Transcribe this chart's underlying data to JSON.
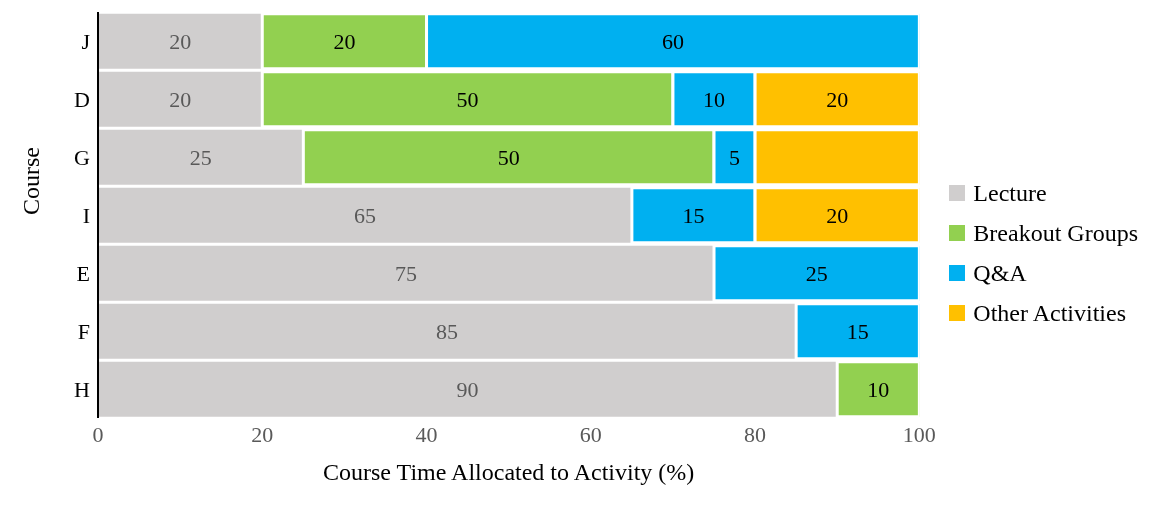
{
  "chart_data": {
    "type": "bar",
    "orientation": "horizontal",
    "stacked": true,
    "xlabel": "Course Time Allocated to Activity (%)",
    "ylabel": "Course",
    "categories": [
      "J",
      "D",
      "G",
      "I",
      "E",
      "F",
      "H"
    ],
    "series": [
      {
        "name": "Lecture",
        "color": "#d0cece",
        "values": [
          20,
          20,
          25,
          65,
          75,
          85,
          90
        ],
        "value_labels": [
          "20",
          "20",
          "25",
          "65",
          "75",
          "85",
          "90"
        ]
      },
      {
        "name": "Breakout Groups",
        "color": "#92d050",
        "values": [
          20,
          50,
          50,
          null,
          null,
          null,
          10
        ],
        "value_labels": [
          "20",
          "50",
          "50",
          null,
          null,
          null,
          "10"
        ]
      },
      {
        "name": "Q&A",
        "color": "#00b0f0",
        "values": [
          60,
          10,
          5,
          15,
          25,
          15,
          null
        ],
        "value_labels": [
          "60",
          "10",
          "5",
          "15",
          "25",
          "15",
          null
        ]
      },
      {
        "name": "Other Activities",
        "color": "#ffc000",
        "values": [
          null,
          20,
          20,
          20,
          null,
          null,
          null
        ],
        "value_labels": [
          null,
          "20",
          null,
          "20",
          null,
          null,
          null
        ]
      }
    ],
    "xlim": [
      0,
      100
    ],
    "xticks": [
      0,
      20,
      40,
      60,
      80,
      100
    ],
    "legend": "right"
  }
}
